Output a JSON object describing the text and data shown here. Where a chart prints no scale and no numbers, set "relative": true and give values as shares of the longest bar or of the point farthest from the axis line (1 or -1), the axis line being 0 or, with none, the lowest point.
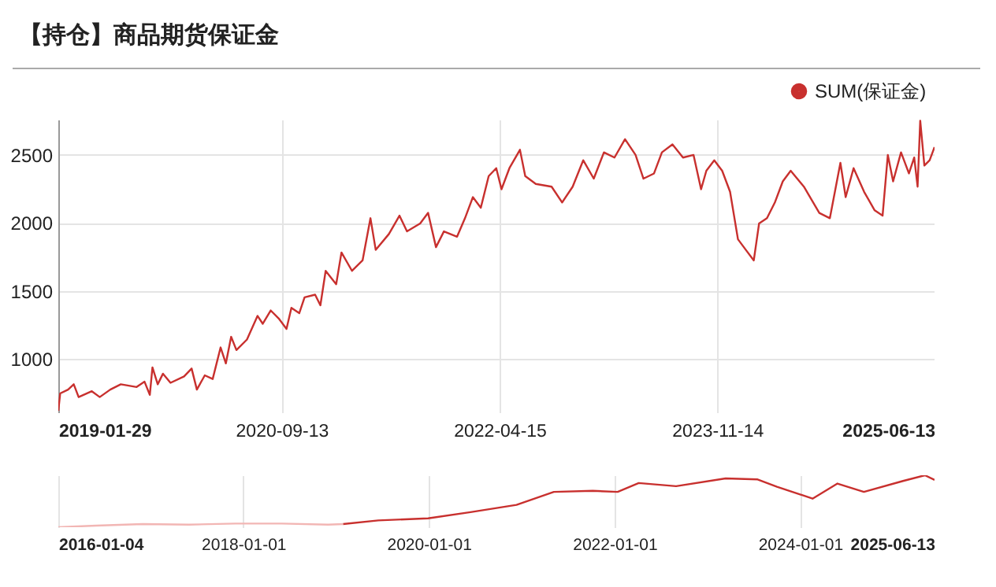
{
  "chart_data": [
    {
      "type": "line",
      "title": "【持仓】商品期货保证金",
      "legend": "top right",
      "grid": true,
      "xlim": [
        "2019-01-29",
        "2025-06-13"
      ],
      "xticks": [
        "2019-01-29",
        "2020-09-13",
        "2022-04-15",
        "2023-11-14",
        "2025-06-13"
      ],
      "ylim": [
        608,
        2760
      ],
      "yticks": [
        1000,
        1500,
        2000,
        2500
      ],
      "series": [
        {
          "name": "SUM(保证金)",
          "color": "#c8302e",
          "x": [
            "2019-01-29",
            "2019-02-03",
            "2019-02-24",
            "2019-03-11",
            "2019-03-24",
            "2019-04-28",
            "2019-05-19",
            "2019-06-16",
            "2019-07-14",
            "2019-08-25",
            "2019-09-15",
            "2019-09-29",
            "2019-10-06",
            "2019-10-20",
            "2019-11-03",
            "2019-11-23",
            "2019-12-29",
            "2020-01-18",
            "2020-02-01",
            "2020-02-22",
            "2020-03-14",
            "2020-04-04",
            "2020-04-18",
            "2020-05-02",
            "2020-05-16",
            "2020-06-13",
            "2020-07-11",
            "2020-07-25",
            "2020-08-15",
            "2020-09-05",
            "2020-09-26",
            "2020-10-09",
            "2020-10-30",
            "2020-11-13",
            "2020-12-11",
            "2020-12-25",
            "2021-01-08",
            "2021-02-05",
            "2021-02-19",
            "2021-03-19",
            "2021-04-16",
            "2021-05-07",
            "2021-05-21",
            "2021-06-25",
            "2021-07-23",
            "2021-08-12",
            "2021-09-16",
            "2021-10-07",
            "2021-10-28",
            "2021-11-18",
            "2021-12-23",
            "2022-01-13",
            "2022-02-03",
            "2022-02-24",
            "2022-03-17",
            "2022-04-06",
            "2022-04-20",
            "2022-05-11",
            "2022-06-08",
            "2022-06-22",
            "2022-07-20",
            "2022-08-31",
            "2022-09-28",
            "2022-10-26",
            "2022-11-23",
            "2022-12-21",
            "2023-01-17",
            "2023-02-14",
            "2023-03-14",
            "2023-04-11",
            "2023-05-02",
            "2023-05-30",
            "2023-06-20",
            "2023-07-18",
            "2023-08-15",
            "2023-09-12",
            "2023-10-02",
            "2023-10-16",
            "2023-11-06",
            "2023-11-27",
            "2023-12-18",
            "2024-01-08",
            "2024-01-29",
            "2024-02-19",
            "2024-03-04",
            "2024-03-25",
            "2024-04-15",
            "2024-05-06",
            "2024-05-27",
            "2024-07-01",
            "2024-08-11",
            "2024-09-08",
            "2024-10-06",
            "2024-10-20",
            "2024-11-10",
            "2024-12-08",
            "2025-01-05",
            "2025-01-26",
            "2025-02-09",
            "2025-02-23",
            "2025-03-16",
            "2025-04-06",
            "2025-04-20",
            "2025-04-29",
            "2025-05-06",
            "2025-05-17",
            "2025-05-31",
            "2025-06-13"
          ],
          "values": [
            619,
            747,
            775,
            814,
            720,
            763,
            720,
            775,
            814,
            794,
            833,
            736,
            938,
            814,
            892,
            825,
            872,
            930,
            775,
            880,
            853,
            1085,
            968,
            1163,
            1066,
            1143,
            1317,
            1259,
            1357,
            1299,
            1221,
            1376,
            1337,
            1453,
            1473,
            1395,
            1648,
            1550,
            1783,
            1648,
            1725,
            2035,
            1802,
            1919,
            2054,
            1938,
            1996,
            2074,
            1822,
            1938,
            1899,
            2035,
            2190,
            2112,
            2345,
            2403,
            2248,
            2403,
            2538,
            2345,
            2287,
            2267,
            2151,
            2267,
            2461,
            2326,
            2519,
            2481,
            2616,
            2500,
            2326,
            2364,
            2519,
            2578,
            2481,
            2500,
            2248,
            2384,
            2461,
            2384,
            2229,
            1880,
            1802,
            1725,
            1996,
            2035,
            2151,
            2306,
            2384,
            2267,
            2074,
            2035,
            2442,
            2190,
            2403,
            2229,
            2093,
            2054,
            2500,
            2306,
            2519,
            2364,
            2481,
            2267,
            2752,
            2422,
            2461,
            2558
          ]
        }
      ]
    },
    {
      "type": "line",
      "relative": true,
      "grid": "x",
      "xlim": [
        "2016-01-04",
        "2025-06-13"
      ],
      "xticks": [
        "2016-01-04",
        "2018-01-01",
        "2020-01-01",
        "2022-01-01",
        "2024-01-01",
        "2025-06-13"
      ],
      "series": [
        {
          "color": "#f2b6b4",
          "x": [
            "2016-01-04",
            "2016-06-01",
            "2016-12-01",
            "2017-06-01",
            "2017-12-01",
            "2018-06-01",
            "2018-12-01",
            "2019-01-29"
          ],
          "values": [
            0,
            0.03,
            0.06,
            0.05,
            0.07,
            0.07,
            0.05,
            0.06
          ]
        },
        {
          "color": "#c8302e",
          "x": [
            "2019-01-29",
            "2019-06-16",
            "2019-12-29",
            "2020-06-13",
            "2020-12-11",
            "2021-05-07",
            "2021-10-07",
            "2022-01-13",
            "2022-04-06",
            "2022-08-31",
            "2023-03-14",
            "2023-07-18",
            "2023-10-02",
            "2024-02-19",
            "2024-05-27",
            "2024-09-08",
            "2025-02-09",
            "2025-05-06",
            "2025-06-13"
          ],
          "values": [
            0.06,
            0.13,
            0.17,
            0.29,
            0.43,
            0.68,
            0.7,
            0.68,
            0.85,
            0.79,
            0.94,
            0.92,
            0.78,
            0.55,
            0.84,
            0.68,
            0.89,
            1,
            0.91
          ]
        }
      ]
    }
  ]
}
